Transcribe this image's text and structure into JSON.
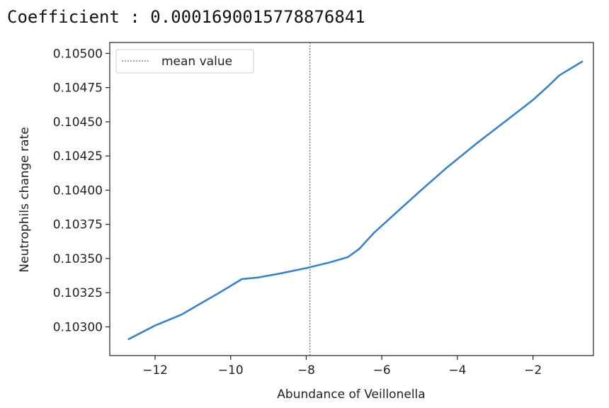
{
  "output": {
    "coefficient_text": "Coefficient : 0.00016900157788768 41"
  },
  "chart_data": {
    "type": "line",
    "title": "",
    "xlabel": "Abundance of Veillonella",
    "ylabel": "Neutrophils change rate",
    "xlim": [
      -13.2,
      -0.4
    ],
    "ylim": [
      0.10279,
      0.10508
    ],
    "xticks": [
      -12,
      -10,
      -8,
      -6,
      -4,
      -2
    ],
    "xtick_labels": [
      "−12",
      "−10",
      "−8",
      "−6",
      "−4",
      "−2"
    ],
    "yticks": [
      0.103,
      0.10325,
      0.1035,
      0.10375,
      0.104,
      0.10425,
      0.1045,
      0.10475,
      0.105
    ],
    "ytick_labels": [
      "0.10300",
      "0.10325",
      "0.10350",
      "0.10375",
      "0.10400",
      "0.10425",
      "0.10450",
      "0.10475",
      "0.10500"
    ],
    "grid": false,
    "legend_position": "top-left",
    "series": [
      {
        "color": "#3b82c4",
        "x": [
          -12.7,
          -12.0,
          -11.3,
          -10.8,
          -10.3,
          -9.7,
          -9.3,
          -8.7,
          -8.0,
          -7.4,
          -6.9,
          -6.6,
          -6.2,
          -5.6,
          -5.0,
          -4.3,
          -3.5,
          -2.7,
          -2.0,
          -1.6,
          -1.3,
          -0.7
        ],
        "y": [
          0.10291,
          0.10301,
          0.10309,
          0.10317,
          0.10325,
          0.10335,
          0.10336,
          0.10339,
          0.10343,
          0.10347,
          0.10351,
          0.10357,
          0.10369,
          0.10384,
          0.10399,
          0.10416,
          0.10434,
          0.10451,
          0.10466,
          0.10476,
          0.10484,
          0.10494
        ]
      }
    ],
    "reference_lines": [
      {
        "orientation": "vertical",
        "x": -7.9,
        "label": "mean value",
        "style": "dotted",
        "color": "#555555"
      }
    ]
  }
}
